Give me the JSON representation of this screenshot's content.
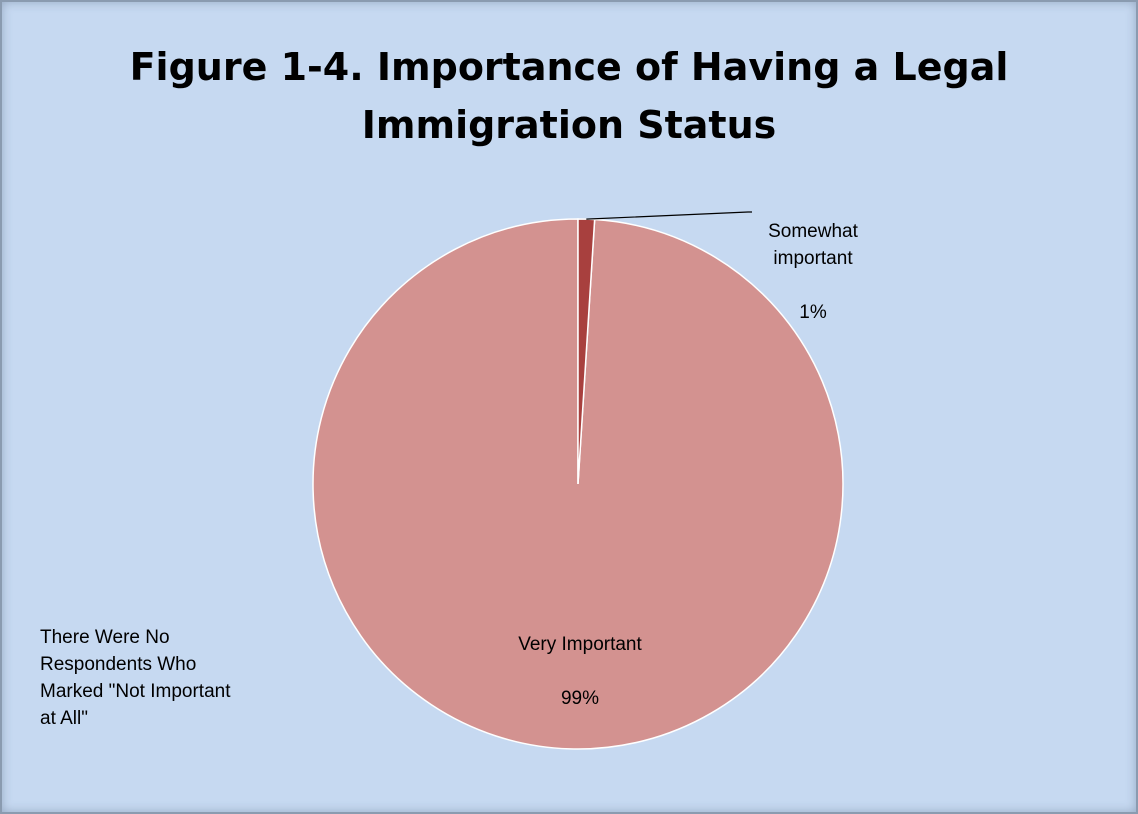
{
  "chart_data": {
    "type": "pie",
    "title": "Figure 1-4. Importance of Having a Legal\nImmigration Status",
    "slices": [
      {
        "label": "Very Important",
        "value": 99,
        "value_label": "99%",
        "color": "#d39290"
      },
      {
        "label": "Somewhat\nimportant",
        "value": 1,
        "value_label": "1%",
        "color": "#a8403e"
      }
    ],
    "annotation": "There Were No\nRespondents Who\nMarked \"Not Important\nat All\"",
    "legend": "none",
    "background": "#c6d9f1"
  }
}
